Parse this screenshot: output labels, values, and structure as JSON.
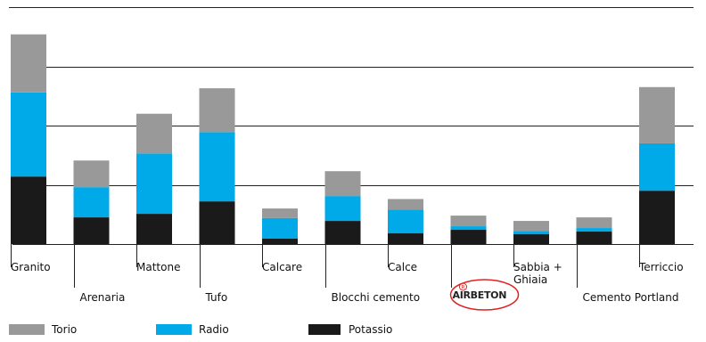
{
  "chart_data": {
    "type": "bar",
    "stacked": true,
    "grid": true,
    "legend_position": "bottom-left",
    "ylim": [
      0,
      4
    ],
    "categories": [
      "Granito",
      "Arenaria",
      "Mattone",
      "Tufo",
      "Calcare",
      "Blocchi cemento",
      "Calce",
      "AIRBETON",
      "Sabbia + Ghiaia",
      "Cemento Portland",
      "Terriccio"
    ],
    "series": [
      {
        "name": "Potassio",
        "color": "#1a1a1a",
        "values": [
          1.14,
          0.45,
          0.51,
          0.72,
          0.09,
          0.39,
          0.18,
          0.24,
          0.17,
          0.21,
          0.9
        ]
      },
      {
        "name": "Radio",
        "color": "#00a9e7",
        "values": [
          1.42,
          0.51,
          1.02,
          1.17,
          0.35,
          0.42,
          0.4,
          0.06,
          0.05,
          0.06,
          0.8
        ]
      },
      {
        "name": "Torio",
        "color": "#999999",
        "values": [
          0.98,
          0.45,
          0.67,
          0.74,
          0.16,
          0.42,
          0.18,
          0.18,
          0.17,
          0.18,
          0.95
        ]
      }
    ],
    "highlight": {
      "category": "AIRBETON",
      "badge": "R",
      "color": "#e02020"
    }
  }
}
